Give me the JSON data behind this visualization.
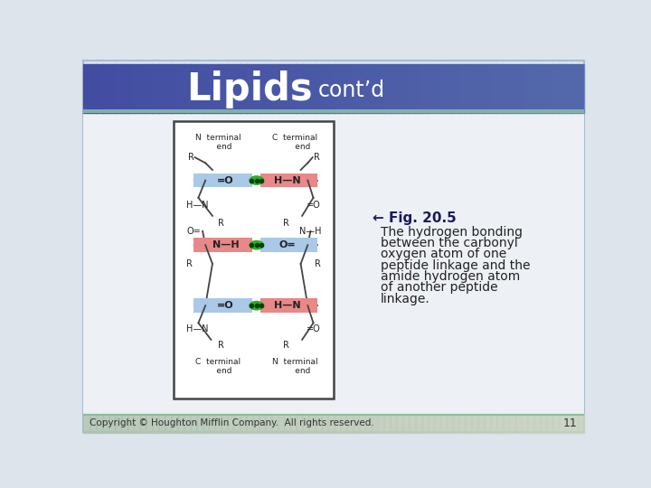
{
  "title_large": "Lipids",
  "title_small": "cont’d",
  "slide_bg_color": "#dde4ec",
  "fig_caption_bold": "← Fig. 20.5",
  "fig_caption_lines": [
    "The hydrogen bonding",
    "between the carbonyl",
    "oxygen atom of one",
    "peptide linkage and the",
    "amide hydrogen atom",
    "of another peptide",
    "linkage."
  ],
  "footer_text": "Copyright © Houghton Mifflin Company.  All rights reserved.",
  "footer_number": "11",
  "blue_box_color": "#aac8e8",
  "red_box_color": "#e88888",
  "green_dot_color": "#44aa33",
  "line_color": "#444444",
  "text_color": "#222222",
  "dark_navy": "#1a1a5e"
}
